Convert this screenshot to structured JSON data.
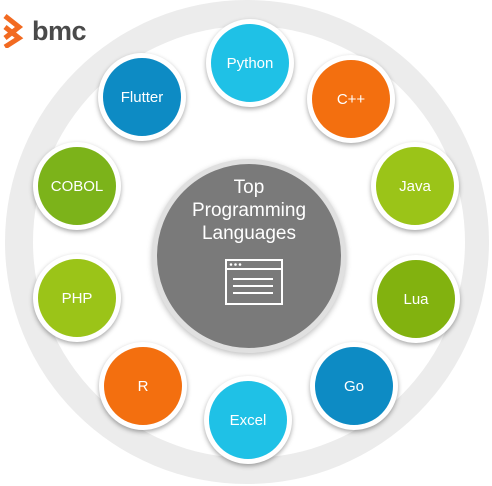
{
  "logo": {
    "text": "bmc",
    "icon": "bmc-chevron-logo",
    "color": "#f26a21"
  },
  "center": {
    "title_lines": [
      "Top",
      "Programming",
      "Languages"
    ],
    "icon": "browser-window-icon",
    "color": "#7a7a7a"
  },
  "languages": [
    {
      "label": "Python",
      "color": "#1fc1e6"
    },
    {
      "label": "C++",
      "color": "#f36f0f"
    },
    {
      "label": "Java",
      "color": "#9bc418"
    },
    {
      "label": "Lua",
      "color": "#82b20f"
    },
    {
      "label": "Go",
      "color": "#0d8bc4"
    },
    {
      "label": "Excel",
      "color": "#1fc1e6"
    },
    {
      "label": "R",
      "color": "#f36f0f"
    },
    {
      "label": "PHP",
      "color": "#9bc418"
    },
    {
      "label": "COBOL",
      "color": "#7cb31a"
    },
    {
      "label": "Flutter",
      "color": "#0d8bc4"
    }
  ]
}
